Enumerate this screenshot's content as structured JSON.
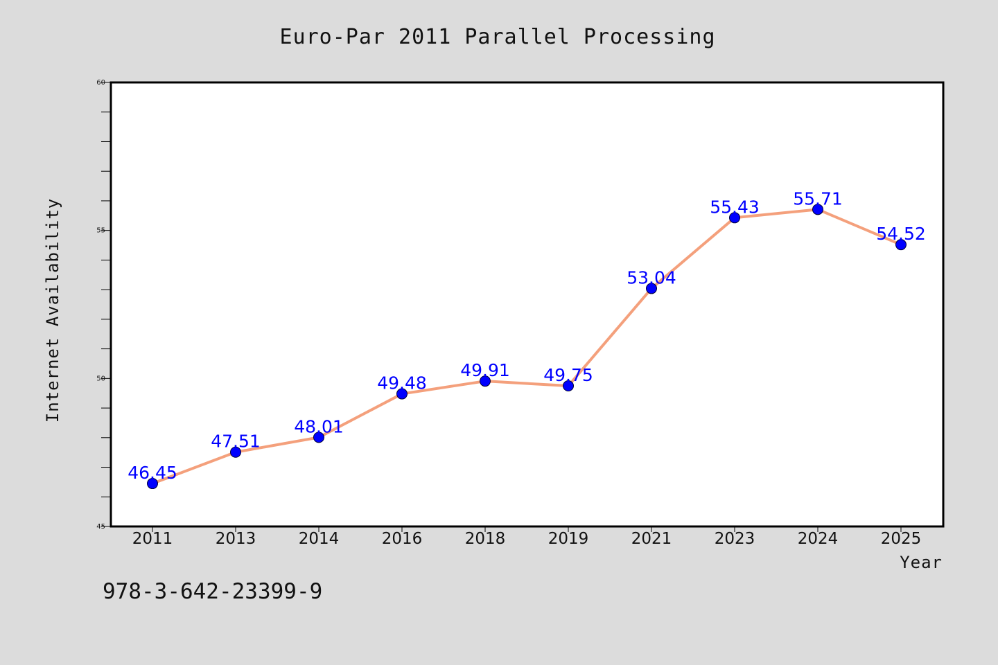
{
  "chart_data": {
    "type": "line",
    "title": "Euro-Par 2011 Parallel Processing",
    "xlabel": "Year",
    "ylabel": "Internet Availability",
    "categories": [
      "2011",
      "2013",
      "2014",
      "2016",
      "2018",
      "2019",
      "2021",
      "2023",
      "2024",
      "2025"
    ],
    "series": [
      {
        "values": [
          46.45,
          47.51,
          48.01,
          49.48,
          49.91,
          49.75,
          53.04,
          55.43,
          55.71,
          54.52
        ],
        "line_color": "#f4a07c",
        "marker_color": "#0000ff"
      }
    ],
    "data_labels": [
      "46.45",
      "47.51",
      "48.01",
      "49.48",
      "49.91",
      "49.75",
      "53.04",
      "55.43",
      "55.71",
      "54.52"
    ],
    "y_ticks": [
      "45",
      "50",
      "55",
      "60"
    ],
    "ylim": [
      45,
      60
    ],
    "grid": false,
    "legend": "none",
    "background_color": "#dcdcdc",
    "plot_background_color": "#ffffff"
  },
  "footer": {
    "isbn": "978-3-642-23399-9"
  }
}
